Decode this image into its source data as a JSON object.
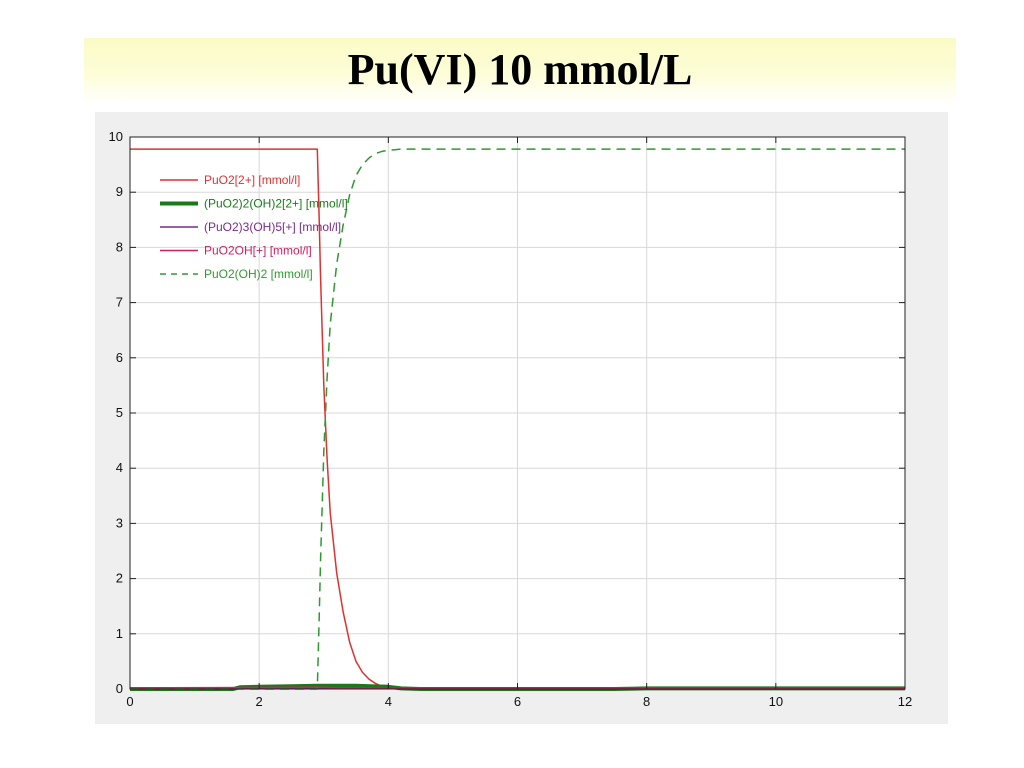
{
  "slide": {
    "title": "Pu(VI) 10 mmol/L"
  },
  "chart_data": {
    "type": "line",
    "title": "",
    "xlabel": "",
    "ylabel": "",
    "xlim": [
      0,
      12
    ],
    "ylim": [
      0,
      10
    ],
    "x_ticks": [
      0,
      2,
      4,
      6,
      8,
      10,
      12
    ],
    "y_ticks": [
      0,
      1,
      2,
      3,
      4,
      5,
      6,
      7,
      8,
      9,
      10
    ],
    "grid": true,
    "legend_position": "top-left",
    "series": [
      {
        "name": "PuO2[2+] [mmol/l]",
        "color": "#e03030",
        "style": "solid",
        "x": [
          0,
          2.9,
          2.93,
          2.95,
          3.0,
          3.05,
          3.1,
          3.2,
          3.3,
          3.4,
          3.5,
          3.6,
          3.7,
          3.8,
          3.9,
          4.0,
          4.1,
          12
        ],
        "y": [
          9.78,
          9.78,
          8.5,
          7.5,
          5.5,
          4.2,
          3.2,
          2.1,
          1.4,
          0.85,
          0.5,
          0.3,
          0.18,
          0.1,
          0.05,
          0.03,
          0.02,
          0.02
        ]
      },
      {
        "name": "(PuO2)2(OH)2[2+] [mmol/l]",
        "color": "#1a7a1a",
        "style": "thick",
        "x": [
          0,
          1.6,
          1.7,
          2.0,
          2.5,
          2.9,
          3.5,
          4.0,
          4.2,
          4.5,
          7.5,
          8.0,
          12
        ],
        "y": [
          0.0,
          0.0,
          0.03,
          0.04,
          0.05,
          0.06,
          0.06,
          0.04,
          0.01,
          0.0,
          0.0,
          0.01,
          0.01
        ]
      },
      {
        "name": "(PuO2)3(OH)5[+] [mmol/l]",
        "color": "#7a2a8a",
        "style": "solid",
        "x": [
          0,
          12
        ],
        "y": [
          0.01,
          0.01
        ]
      },
      {
        "name": "PuO2OH[+] [mmol/l]",
        "color": "#d02060",
        "style": "solid",
        "x": [
          0,
          2.9,
          3.3,
          4.0,
          12
        ],
        "y": [
          0.02,
          0.03,
          0.02,
          0.01,
          0.01
        ]
      },
      {
        "name": "PuO2(OH)2 [mmol/l]",
        "color": "#2e9a2e",
        "style": "dashed",
        "x": [
          0,
          2.9,
          2.93,
          2.95,
          3.0,
          3.05,
          3.1,
          3.2,
          3.3,
          3.4,
          3.5,
          3.6,
          3.7,
          3.8,
          3.9,
          4.0,
          4.1,
          4.2,
          12
        ],
        "y": [
          0.0,
          0.0,
          1.3,
          2.3,
          4.3,
          5.6,
          6.6,
          7.7,
          8.4,
          8.95,
          9.3,
          9.5,
          9.62,
          9.7,
          9.74,
          9.76,
          9.77,
          9.78,
          9.78
        ]
      }
    ]
  }
}
